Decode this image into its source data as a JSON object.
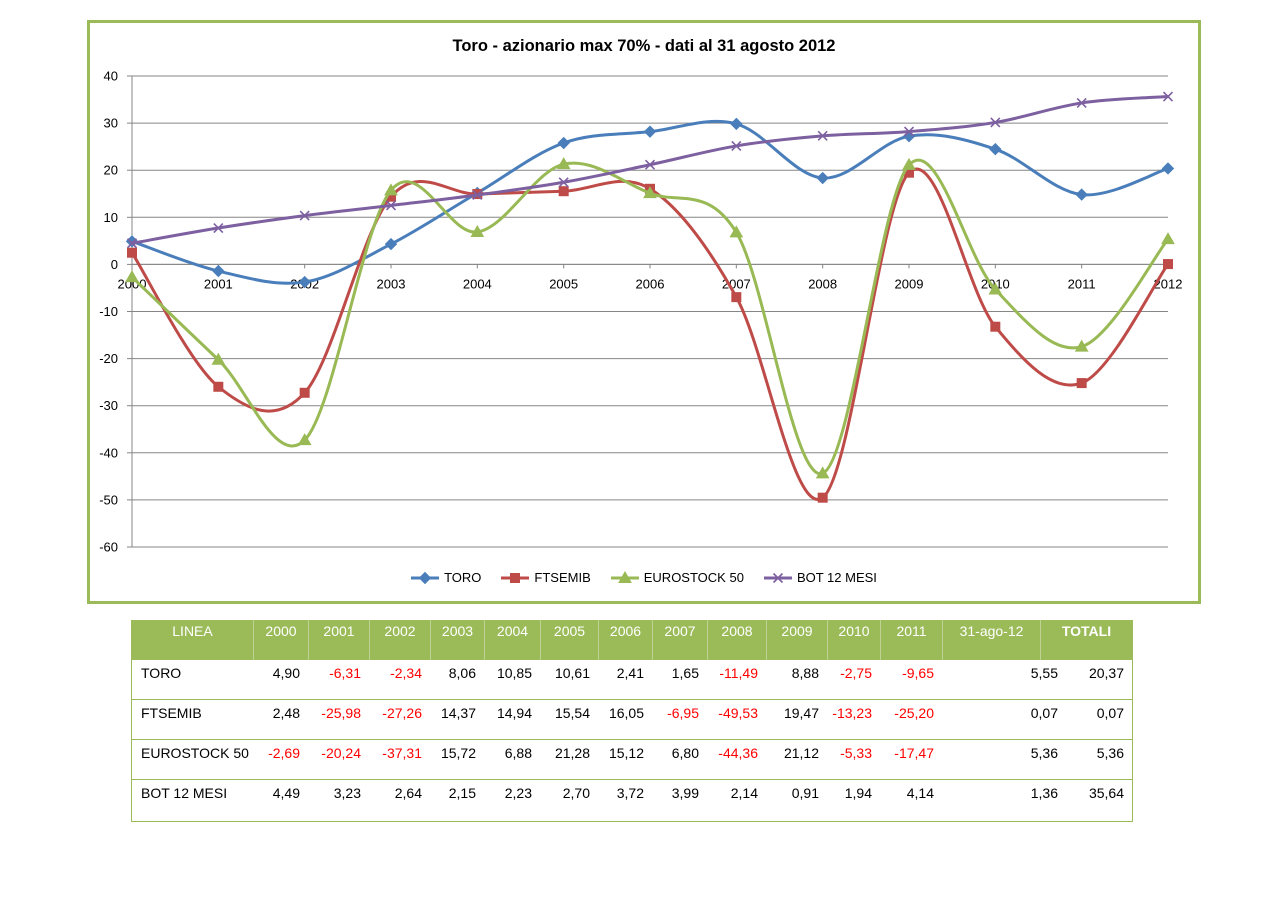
{
  "chart_data": {
    "type": "line",
    "title": "Toro - azionario max 70% - dati al 31 agosto 2012",
    "categories": [
      "2000",
      "2001",
      "2002",
      "2003",
      "2004",
      "2005",
      "2006",
      "2007",
      "2008",
      "2009",
      "2010",
      "2011",
      "2012"
    ],
    "y_ticks": [
      "40",
      "30",
      "20",
      "10",
      "0",
      "-10",
      "-20",
      "-30",
      "-40",
      "-50",
      "-60"
    ],
    "ylim": [
      -60,
      40
    ],
    "grid": true,
    "smooth": true,
    "legend_position": "bottom",
    "series": [
      {
        "name": "TORO",
        "color": "#4A7EBB",
        "marker": "diamond",
        "values": [
          4.9,
          -1.41,
          -3.75,
          4.31,
          15.16,
          25.77,
          28.18,
          29.83,
          18.34,
          27.22,
          24.47,
          14.82,
          20.37
        ]
      },
      {
        "name": "FTSEMIB",
        "color": "#BE4B48",
        "marker": "square",
        "values": [
          2.48,
          -25.98,
          -27.26,
          14.37,
          14.94,
          15.54,
          16.05,
          -6.95,
          -49.53,
          19.47,
          -13.23,
          -25.2,
          0.07
        ]
      },
      {
        "name": "EUROSTOCK 50",
        "color": "#98B954",
        "marker": "triangle",
        "values": [
          -2.69,
          -20.24,
          -37.31,
          15.72,
          6.88,
          21.28,
          15.12,
          6.8,
          -44.36,
          21.12,
          -5.33,
          -17.47,
          5.36
        ]
      },
      {
        "name": "BOT 12 MESI",
        "color": "#7D60A0",
        "marker": "x",
        "values": [
          4.49,
          7.72,
          10.36,
          12.51,
          14.74,
          17.44,
          21.16,
          25.15,
          27.29,
          28.2,
          30.14,
          34.28,
          35.64
        ]
      }
    ]
  },
  "table": {
    "header_color": "#9BBB59",
    "negative_color": "#FF0000",
    "headers": [
      "LINEA",
      "2000",
      "2001",
      "2002",
      "2003",
      "2004",
      "2005",
      "2006",
      "2007",
      "2008",
      "2009",
      "2010",
      "2011",
      "31-ago-12",
      "TOTALI"
    ],
    "rows": [
      {
        "label": "TORO",
        "values": [
          "4,90",
          "-6,31",
          "-2,34",
          "8,06",
          "10,85",
          "10,61",
          "2,41",
          "1,65",
          "-11,49",
          "8,88",
          "-2,75",
          "-9,65",
          "5,55",
          "20,37"
        ]
      },
      {
        "label": "FTSEMIB",
        "values": [
          "2,48",
          "-25,98",
          "-27,26",
          "14,37",
          "14,94",
          "15,54",
          "16,05",
          "-6,95",
          "-49,53",
          "19,47",
          "-13,23",
          "-25,20",
          "0,07",
          "0,07"
        ]
      },
      {
        "label": "EUROSTOCK 50",
        "values": [
          "-2,69",
          "-20,24",
          "-37,31",
          "15,72",
          "6,88",
          "21,28",
          "15,12",
          "6,80",
          "-44,36",
          "21,12",
          "-5,33",
          "-17,47",
          "5,36",
          "5,36"
        ]
      },
      {
        "label": "BOT 12 MESI",
        "values": [
          "4,49",
          "3,23",
          "2,64",
          "2,15",
          "2,23",
          "2,70",
          "3,72",
          "3,99",
          "2,14",
          "0,91",
          "1,94",
          "4,14",
          "1,36",
          "35,64"
        ]
      }
    ]
  }
}
